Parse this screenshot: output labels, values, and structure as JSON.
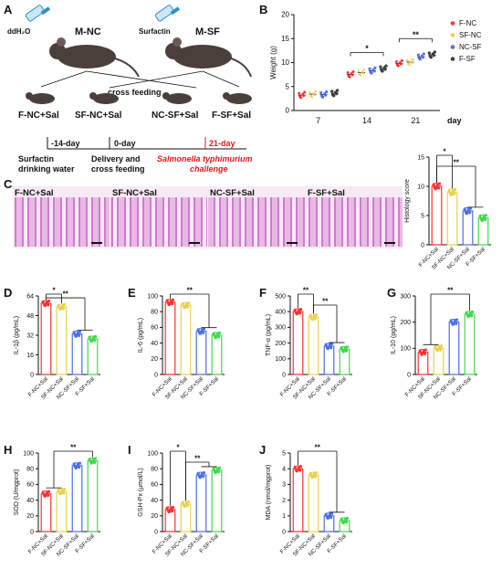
{
  "panel_letters": {
    "A": "A",
    "B": "B",
    "C": "C",
    "D": "D",
    "E": "E",
    "F": "F",
    "G": "G",
    "H": "H",
    "I": "I",
    "J": "J"
  },
  "schematic": {
    "water_label": "ddH₂O",
    "surfactin_label": "Surfactin",
    "group_nc": "M-NC",
    "group_sf": "M-SF",
    "cross_feeding": "cross feeding",
    "groups": [
      "F-NC+Sal",
      "SF-NC+Sal",
      "NC-SF+Sal",
      "F-SF+Sal"
    ],
    "timeline_days": [
      "-14-day",
      "0-day",
      "21-day"
    ],
    "timeline_texts": [
      "Surfactin\ndrinking water",
      "Delivery and\ncross feeding"
    ],
    "challenge_line1": "Salmonella typhimurium",
    "challenge_line2": "challenge",
    "colors": {
      "mouse": "#4a3f3b",
      "bottle": "#2e8fd1",
      "red": "#e11919"
    }
  },
  "micrographs": {
    "labels": [
      "F-NC+Sal",
      "SF-NC+Sal",
      "NC-SF+Sal",
      "F-SF+Sal"
    ],
    "stain_color": "#c95cc7"
  },
  "colors": {
    "F-NC": "#ff3030",
    "SF-NC": "#e8d24a",
    "NC-SF": "#4a6ee8",
    "F-SF": "#3fd94a"
  },
  "chart_data": [
    {
      "id": "B",
      "type": "scatter",
      "ylabel": "Weight (g)",
      "xlabel": "day",
      "categories": [
        "7",
        "14",
        "21"
      ],
      "ylim": [
        0,
        20
      ],
      "yticks": [
        0,
        5,
        10,
        15,
        20
      ],
      "legend": [
        "F-NC",
        "SF-NC",
        "NC-SF",
        "F-SF"
      ],
      "series": [
        {
          "name": "F-NC",
          "values": [
            3.2,
            7.5,
            9.8
          ]
        },
        {
          "name": "SF-NC",
          "values": [
            3.4,
            7.9,
            10.1
          ]
        },
        {
          "name": "NC-SF",
          "values": [
            3.3,
            8.3,
            11.2
          ]
        },
        {
          "name": "F-SF",
          "values": [
            3.6,
            8.7,
            11.6
          ]
        }
      ],
      "significance": [
        "*",
        "**"
      ]
    },
    {
      "id": "C-score",
      "type": "bar",
      "ylabel": "Histology score",
      "categories": [
        "F-NC+Sal",
        "SF-NC+Sal",
        "NC-SF+Sal",
        "F-SF+Sal"
      ],
      "values": [
        10.0,
        9.0,
        5.8,
        4.6
      ],
      "ylim": [
        0,
        15
      ],
      "yticks": [
        0,
        5,
        10,
        15
      ],
      "significance": [
        "*",
        "**"
      ]
    },
    {
      "id": "D",
      "type": "bar",
      "ylabel": "IL-1β (pg/mL)",
      "categories": [
        "F-NC+Sal",
        "SF-NC+Sal",
        "NC-SF+Sal",
        "F-SF+Sal"
      ],
      "values": [
        58,
        55,
        33,
        29
      ],
      "ylim": [
        0,
        64
      ],
      "yticks": [
        0,
        16,
        32,
        48,
        64
      ],
      "significance": [
        "*",
        "**"
      ]
    },
    {
      "id": "E",
      "type": "bar",
      "ylabel": "IL-6 (pg/mL)",
      "categories": [
        "F-NC+Sal",
        "SF-NC+Sal",
        "NC-SF+Sal",
        "F-SF+Sal"
      ],
      "values": [
        92,
        88,
        55,
        50
      ],
      "ylim": [
        0,
        100
      ],
      "yticks": [
        0,
        20,
        40,
        60,
        80,
        100
      ],
      "significance": [
        "**"
      ]
    },
    {
      "id": "F",
      "type": "bar",
      "ylabel": "TNF-α (pg/mL)",
      "categories": [
        "F-NC+Sal",
        "SF-NC+Sal",
        "NC-SF+Sal",
        "F-SF+Sal"
      ],
      "values": [
        400,
        365,
        180,
        160
      ],
      "ylim": [
        0,
        500
      ],
      "yticks": [
        0,
        100,
        200,
        300,
        400,
        500
      ],
      "significance": [
        "**",
        "**"
      ]
    },
    {
      "id": "G",
      "type": "bar",
      "ylabel": "IL-10 (pg/mL)",
      "categories": [
        "F-NC+Sal",
        "SF-NC+Sal",
        "NC-SF+Sal",
        "F-SF+Sal"
      ],
      "values": [
        85,
        100,
        200,
        230
      ],
      "ylim": [
        0,
        300
      ],
      "yticks": [
        0,
        100,
        200,
        300
      ],
      "significance": [
        "**"
      ]
    },
    {
      "id": "H",
      "type": "bar",
      "ylabel": "SOD (U/mgprot)",
      "categories": [
        "F-NC+Sal",
        "SF-NC+Sal",
        "NC-SF+Sal",
        "F-SF+Sal"
      ],
      "values": [
        48,
        51,
        84,
        90
      ],
      "ylim": [
        0,
        100
      ],
      "yticks": [
        0,
        20,
        40,
        60,
        80,
        100
      ],
      "significance": [
        "**"
      ]
    },
    {
      "id": "I",
      "type": "bar",
      "ylabel": "GSH-Px (μmol/L)",
      "categories": [
        "F-NC+Sal",
        "SF-NC+Sal",
        "NC-SF+Sal",
        "F-SF+Sal"
      ],
      "values": [
        28,
        35,
        72,
        78
      ],
      "ylim": [
        0,
        100
      ],
      "yticks": [
        0,
        20,
        40,
        60,
        80,
        100
      ],
      "significance": [
        "*",
        "**"
      ]
    },
    {
      "id": "J",
      "type": "bar",
      "ylabel": "MDA (nmol/mgprot)",
      "categories": [
        "F-NC+Sal",
        "SF-NC+Sal",
        "NC-SF+Sal",
        "F-SF+Sal"
      ],
      "values": [
        4.0,
        3.6,
        1.0,
        0.7
      ],
      "ylim": [
        0,
        5
      ],
      "yticks": [
        0,
        1,
        2,
        3,
        4,
        5
      ],
      "significance": [
        "**"
      ]
    }
  ]
}
